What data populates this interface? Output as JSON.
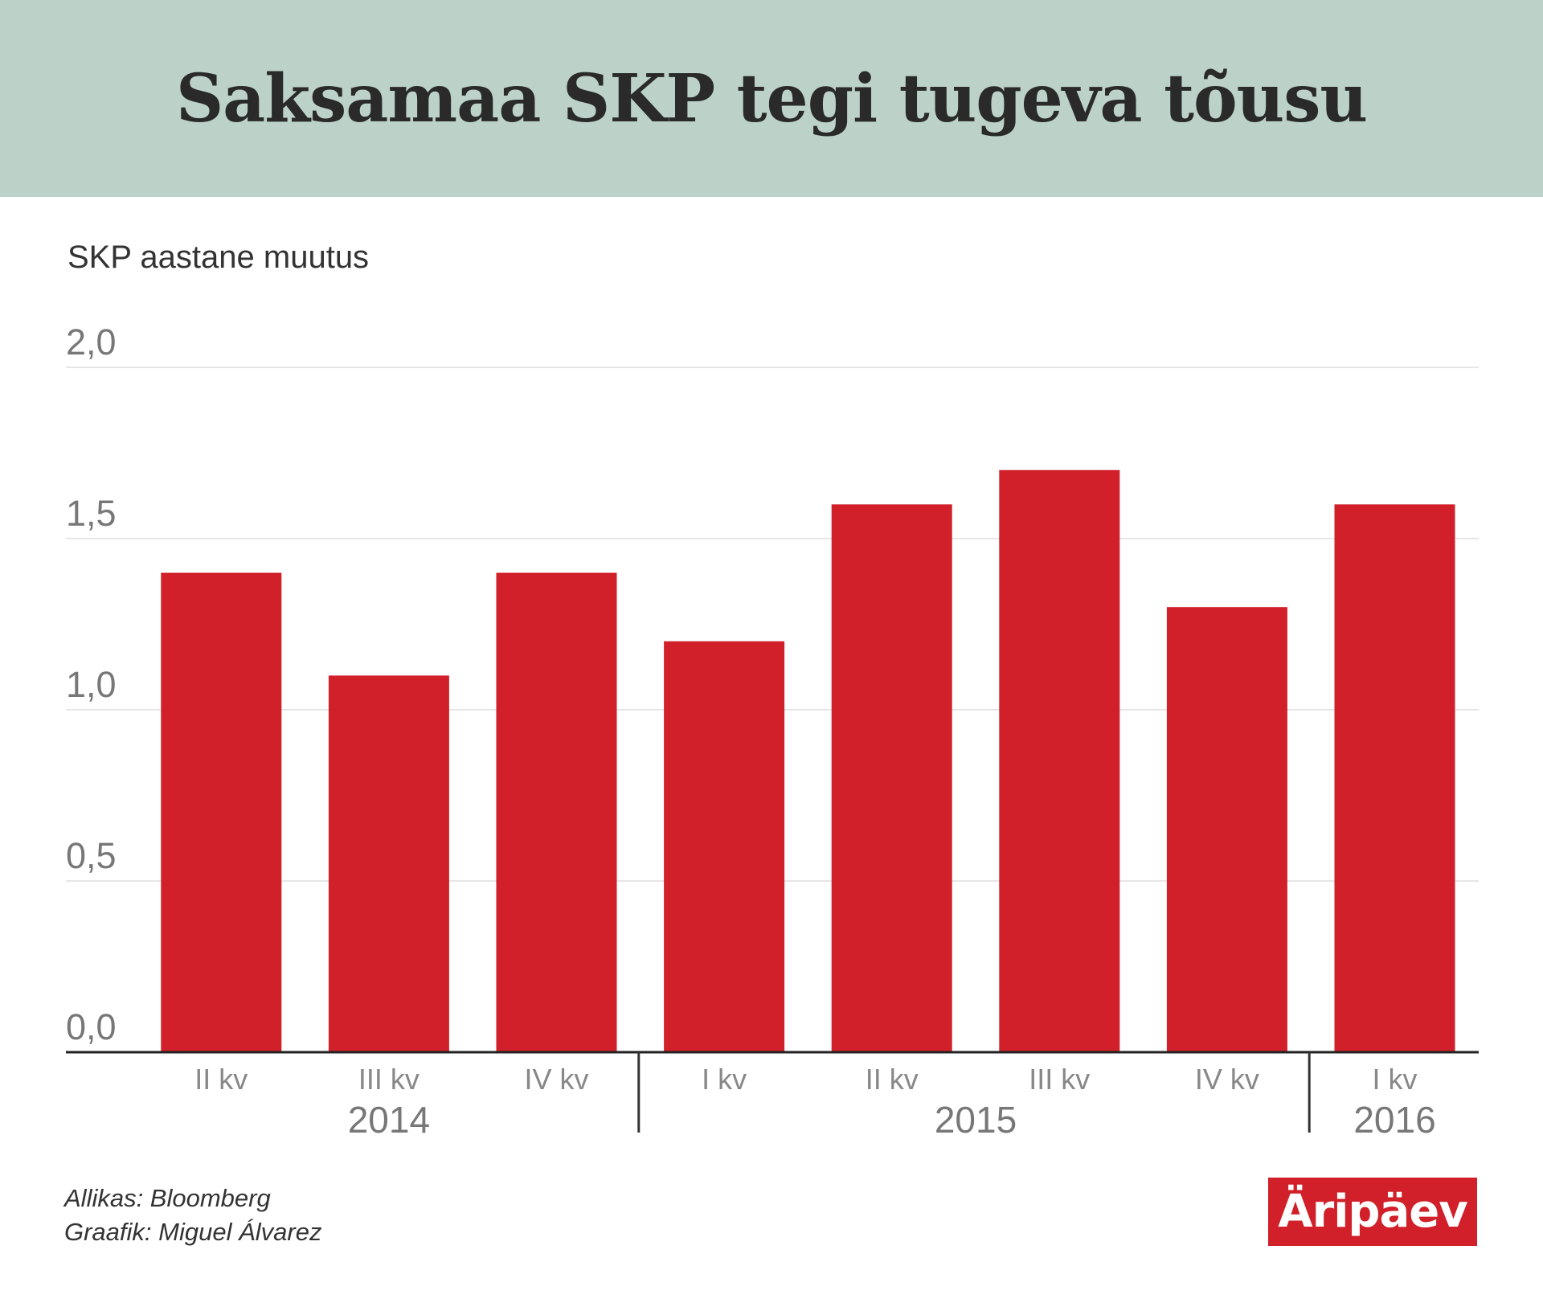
{
  "header": {
    "title": "Saksamaa SKP tegi tugeva tõusu"
  },
  "chart_data": {
    "type": "bar",
    "title": "Saksamaa SKP tegi tugeva tõusu",
    "subtitle": "SKP aastane muutus",
    "categories": [
      "II kv",
      "III kv",
      "IV kv",
      "I kv",
      "II kv",
      "III kv",
      "IV kv",
      "I kv"
    ],
    "groups": [
      {
        "label": "2014",
        "categories": [
          "II kv",
          "III kv",
          "IV kv"
        ]
      },
      {
        "label": "2015",
        "categories": [
          "I kv",
          "II kv",
          "III kv",
          "IV kv"
        ]
      },
      {
        "label": "2016",
        "categories": [
          "I kv"
        ]
      }
    ],
    "values": [
      1.4,
      1.1,
      1.4,
      1.2,
      1.6,
      1.7,
      1.3,
      1.6
    ],
    "yticks": [
      "0,0",
      "0,5",
      "1,0",
      "1,5",
      "2,0"
    ],
    "ylim": [
      0,
      2.0
    ],
    "grid": true,
    "bar_color": "#d1202a"
  },
  "footer": {
    "source": "Allikas: Bloomberg",
    "author": "Graafik: Miguel Álvarez",
    "logo_text": "Äripäev"
  },
  "colors": {
    "header_bg": "#bcd2c9",
    "bar": "#d1202a"
  }
}
